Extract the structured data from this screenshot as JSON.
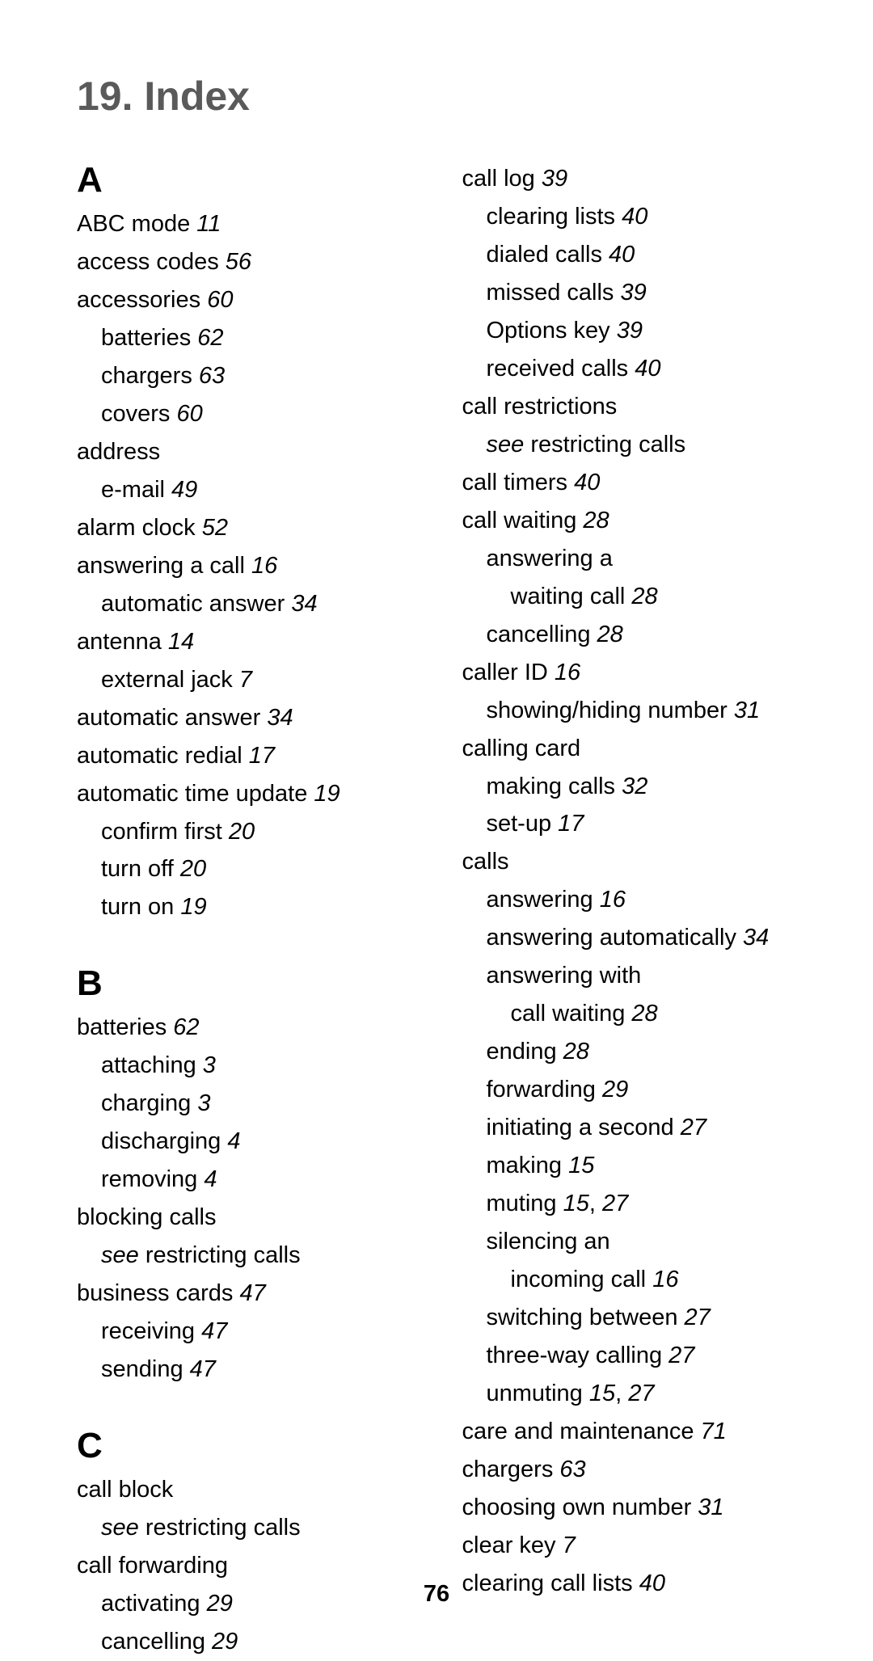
{
  "title": "19. Index",
  "pageNumber": "76",
  "columns": [
    {
      "sections": [
        {
          "letter": "A",
          "entries": [
            {
              "level": 0,
              "text": "ABC mode",
              "pages": "11"
            },
            {
              "level": 0,
              "text": "access codes",
              "pages": "56"
            },
            {
              "level": 0,
              "text": "accessories",
              "pages": "60"
            },
            {
              "level": 1,
              "text": "batteries",
              "pages": "62"
            },
            {
              "level": 1,
              "text": "chargers",
              "pages": "63"
            },
            {
              "level": 1,
              "text": "covers",
              "pages": "60"
            },
            {
              "level": 0,
              "text": "address",
              "pages": ""
            },
            {
              "level": 1,
              "text": "e-mail",
              "pages": "49"
            },
            {
              "level": 0,
              "text": "alarm clock",
              "pages": "52"
            },
            {
              "level": 0,
              "text": "answering a call",
              "pages": "16"
            },
            {
              "level": 1,
              "text": "automatic answer",
              "pages": "34"
            },
            {
              "level": 0,
              "text": "antenna",
              "pages": "14"
            },
            {
              "level": 1,
              "text": "external jack",
              "pages": "7"
            },
            {
              "level": 0,
              "text": "automatic answer",
              "pages": "34"
            },
            {
              "level": 0,
              "text": "automatic redial",
              "pages": "17"
            },
            {
              "level": 0,
              "text": "automatic time update",
              "pages": "19"
            },
            {
              "level": 1,
              "text": "confirm first",
              "pages": "20"
            },
            {
              "level": 1,
              "text": "turn off",
              "pages": "20"
            },
            {
              "level": 1,
              "text": "turn on",
              "pages": "19"
            }
          ]
        },
        {
          "letter": "B",
          "entries": [
            {
              "level": 0,
              "text": "batteries",
              "pages": "62"
            },
            {
              "level": 1,
              "text": "attaching",
              "pages": "3"
            },
            {
              "level": 1,
              "text": "charging",
              "pages": "3"
            },
            {
              "level": 1,
              "text": "discharging",
              "pages": "4"
            },
            {
              "level": 1,
              "text": "removing",
              "pages": "4"
            },
            {
              "level": 0,
              "text": "blocking calls",
              "pages": ""
            },
            {
              "level": 1,
              "see": "see",
              "text": " restricting calls",
              "pages": ""
            },
            {
              "level": 0,
              "text": "business cards",
              "pages": "47"
            },
            {
              "level": 1,
              "text": "receiving",
              "pages": "47"
            },
            {
              "level": 1,
              "text": "sending",
              "pages": "47"
            }
          ]
        },
        {
          "letter": "C",
          "entries": [
            {
              "level": 0,
              "text": "call block",
              "pages": ""
            },
            {
              "level": 1,
              "see": "see",
              "text": " restricting calls",
              "pages": ""
            },
            {
              "level": 0,
              "text": "call forwarding",
              "pages": ""
            },
            {
              "level": 1,
              "text": "activating",
              "pages": "29"
            },
            {
              "level": 1,
              "text": "cancelling",
              "pages": "29"
            }
          ]
        }
      ]
    },
    {
      "sections": [
        {
          "letter": "",
          "entries": [
            {
              "level": 0,
              "text": "call log",
              "pages": "39"
            },
            {
              "level": 1,
              "text": "clearing lists",
              "pages": "40"
            },
            {
              "level": 1,
              "text": "dialed calls",
              "pages": "40"
            },
            {
              "level": 1,
              "text": "missed calls",
              "pages": "39"
            },
            {
              "level": 1,
              "text": "Options key",
              "pages": "39"
            },
            {
              "level": 1,
              "text": "received calls",
              "pages": "40"
            },
            {
              "level": 0,
              "text": "call restrictions",
              "pages": ""
            },
            {
              "level": 1,
              "see": "see",
              "text": " restricting calls",
              "pages": ""
            },
            {
              "level": 0,
              "text": "call timers",
              "pages": "40"
            },
            {
              "level": 0,
              "text": "call waiting",
              "pages": "28"
            },
            {
              "level": 1,
              "text": "answering a",
              "pages": ""
            },
            {
              "level": 2,
              "text": "waiting call",
              "pages": "28"
            },
            {
              "level": 1,
              "text": "cancelling",
              "pages": "28"
            },
            {
              "level": 0,
              "text": "caller ID",
              "pages": "16"
            },
            {
              "level": 1,
              "text": "showing/hiding number",
              "pages": "31"
            },
            {
              "level": 0,
              "text": "calling card",
              "pages": ""
            },
            {
              "level": 1,
              "text": "making calls",
              "pages": "32"
            },
            {
              "level": 1,
              "text": "set-up",
              "pages": "17"
            },
            {
              "level": 0,
              "text": "calls",
              "pages": ""
            },
            {
              "level": 1,
              "text": "answering",
              "pages": "16"
            },
            {
              "level": 1,
              "text": "answering automatically",
              "pages": "34"
            },
            {
              "level": 1,
              "text": "answering with",
              "pages": ""
            },
            {
              "level": 2,
              "text": "call waiting",
              "pages": "28"
            },
            {
              "level": 1,
              "text": "ending",
              "pages": "28"
            },
            {
              "level": 1,
              "text": "forwarding",
              "pages": "29"
            },
            {
              "level": 1,
              "text": "initiating a second",
              "pages": "27"
            },
            {
              "level": 1,
              "text": "making",
              "pages": "15"
            },
            {
              "level": 1,
              "text": "muting",
              "pages": "15",
              "pages2": "27"
            },
            {
              "level": 1,
              "text": "silencing an",
              "pages": ""
            },
            {
              "level": 2,
              "text": "incoming call",
              "pages": "16"
            },
            {
              "level": 1,
              "text": "switching between",
              "pages": "27"
            },
            {
              "level": 1,
              "text": "three-way calling",
              "pages": "27"
            },
            {
              "level": 1,
              "text": "unmuting",
              "pages": "15",
              "pages2": "27"
            },
            {
              "level": 0,
              "text": "care and maintenance",
              "pages": "71"
            },
            {
              "level": 0,
              "text": "chargers",
              "pages": "63"
            },
            {
              "level": 0,
              "text": "choosing own number",
              "pages": "31"
            },
            {
              "level": 0,
              "text": "clear key",
              "pages": "7"
            },
            {
              "level": 0,
              "text": "clearing call lists",
              "pages": "40"
            }
          ]
        }
      ]
    }
  ]
}
